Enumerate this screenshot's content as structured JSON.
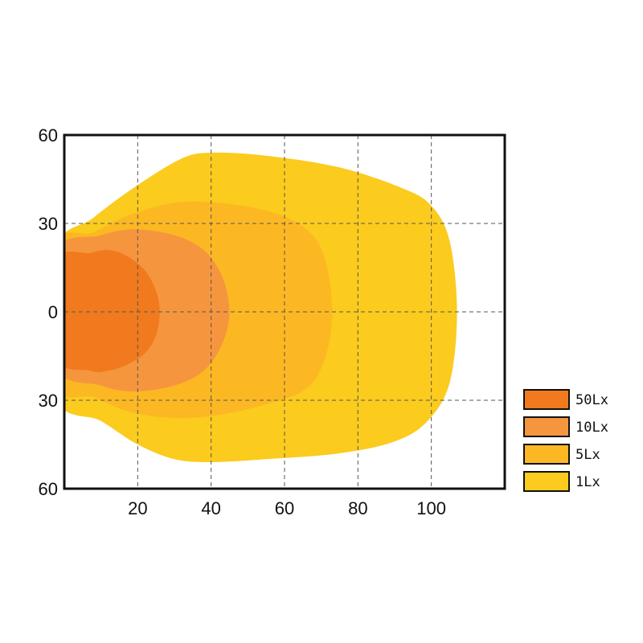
{
  "chart_data": {
    "type": "area",
    "title": "",
    "xlabel": "",
    "ylabel": "",
    "xlim": [
      0,
      120
    ],
    "ylim": [
      -60,
      60
    ],
    "grid": true,
    "legend_position": "right-bottom",
    "x_ticks": [
      {
        "value": 20,
        "label": "20"
      },
      {
        "value": 40,
        "label": "40"
      },
      {
        "value": 60,
        "label": "60"
      },
      {
        "value": 80,
        "label": "80"
      },
      {
        "value": 100,
        "label": "100"
      }
    ],
    "y_ticks": [
      {
        "value": 60,
        "label": "60"
      },
      {
        "value": 30,
        "label": "30"
      },
      {
        "value": 0,
        "label": "0"
      },
      {
        "value": -30,
        "label": "30"
      },
      {
        "value": -60,
        "label": "60"
      }
    ],
    "series": [
      {
        "name": "1Lx",
        "color": "#FBCB1E",
        "points": [
          [
            0,
            20
          ],
          [
            8,
            32
          ],
          [
            20,
            43
          ],
          [
            32,
            52
          ],
          [
            40,
            54
          ],
          [
            55,
            53
          ],
          [
            75,
            49
          ],
          [
            92,
            42
          ],
          [
            100,
            36
          ],
          [
            105,
            24
          ],
          [
            107,
            0
          ],
          [
            105,
            -24
          ],
          [
            99,
            -37
          ],
          [
            90,
            -44
          ],
          [
            75,
            -48
          ],
          [
            55,
            -50
          ],
          [
            40,
            -51
          ],
          [
            30,
            -50
          ],
          [
            20,
            -45
          ],
          [
            10,
            -37
          ],
          [
            0,
            -28
          ]
        ]
      },
      {
        "name": "5Lx",
        "color": "#FCB823",
        "points": [
          [
            0,
            22
          ],
          [
            8,
            27
          ],
          [
            18,
            33
          ],
          [
            30,
            37
          ],
          [
            42,
            37
          ],
          [
            56,
            34
          ],
          [
            66,
            28
          ],
          [
            71,
            18
          ],
          [
            73,
            0
          ],
          [
            71,
            -16
          ],
          [
            66,
            -26
          ],
          [
            56,
            -31
          ],
          [
            42,
            -35
          ],
          [
            30,
            -36
          ],
          [
            18,
            -34
          ],
          [
            8,
            -29
          ],
          [
            0,
            -24
          ]
        ]
      },
      {
        "name": "10Lx",
        "color": "#F5963E",
        "points": [
          [
            0,
            20
          ],
          [
            10,
            26
          ],
          [
            19,
            28
          ],
          [
            30,
            26
          ],
          [
            38,
            21
          ],
          [
            43,
            12
          ],
          [
            45,
            0
          ],
          [
            43,
            -11
          ],
          [
            38,
            -20
          ],
          [
            30,
            -25
          ],
          [
            19,
            -27
          ],
          [
            10,
            -25
          ],
          [
            0,
            -18
          ]
        ]
      },
      {
        "name": "50Lx",
        "color": "#F07A1D",
        "points": [
          [
            0,
            17
          ],
          [
            7,
            20
          ],
          [
            12,
            21
          ],
          [
            17,
            19
          ],
          [
            22,
            14
          ],
          [
            25,
            7
          ],
          [
            26,
            0
          ],
          [
            25,
            -8
          ],
          [
            22,
            -14
          ],
          [
            17,
            -18
          ],
          [
            12,
            -20
          ],
          [
            7,
            -20
          ],
          [
            0,
            -15
          ]
        ]
      }
    ],
    "legend": [
      {
        "label": "50Lx",
        "color": "#F07A1D"
      },
      {
        "label": "10Lx",
        "color": "#F5963E"
      },
      {
        "label": "5Lx",
        "color": "#FCB823"
      },
      {
        "label": "1Lx",
        "color": "#FBCB1E"
      }
    ]
  }
}
